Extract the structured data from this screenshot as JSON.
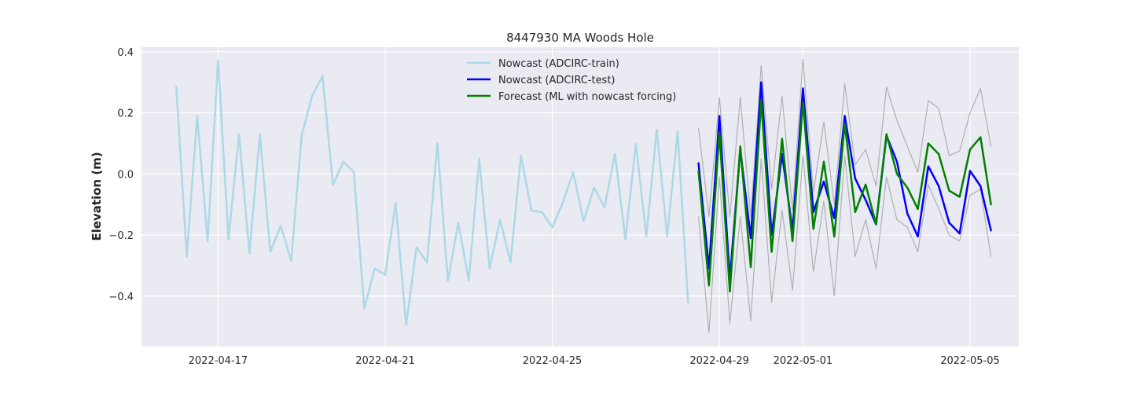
{
  "chart_data": {
    "type": "line",
    "title": "8447930 MA Woods Hole",
    "xlabel": "",
    "ylabel": "Elevation (m)",
    "ylim": [
      -0.565,
      0.415
    ],
    "xlim": [
      "2022-04-15T04:00",
      "2022-05-06T04:00"
    ],
    "x_ticks": [
      "2022-04-17",
      "2022-04-21",
      "2022-04-25",
      "2022-04-29",
      "2022-05-01",
      "2022-05-05"
    ],
    "y_ticks": [
      -0.4,
      -0.2,
      0.0,
      0.2,
      0.4
    ],
    "y_tick_labels": [
      "−0.4",
      "−0.2",
      "0.0",
      "0.2",
      "0.4"
    ],
    "grid": true,
    "legend_position": "top-center",
    "series": [
      {
        "name": "Nowcast (ADCIRC-train)",
        "color": "#add8e6",
        "start": "2022-04-16T00:00",
        "step_hours": 6,
        "values": [
          0.285,
          -0.27,
          0.19,
          -0.22,
          0.372,
          -0.215,
          0.13,
          -0.26,
          0.13,
          -0.255,
          -0.17,
          -0.285,
          0.125,
          0.255,
          0.32,
          -0.035,
          0.04,
          0.005,
          -0.44,
          -0.31,
          -0.33,
          -0.095,
          -0.495,
          -0.24,
          -0.29,
          0.1,
          -0.35,
          -0.16,
          -0.35,
          0.05,
          -0.31,
          -0.15,
          -0.29,
          0.06,
          -0.12,
          -0.125,
          -0.175,
          -0.095,
          0.005,
          -0.155,
          -0.045,
          -0.11,
          0.065,
          -0.215,
          0.1,
          -0.205,
          0.145,
          -0.205,
          0.14,
          -0.42
        ]
      },
      {
        "name": "Nowcast (ADCIRC-test)",
        "color": "#0000ff",
        "start": "2022-04-28T12:00",
        "step_hours": 6,
        "values": [
          0.035,
          -0.31,
          0.19,
          -0.345,
          0.08,
          -0.21,
          0.3,
          -0.2,
          0.065,
          -0.185,
          0.28,
          -0.125,
          -0.025,
          -0.145,
          0.19,
          -0.015,
          -0.085,
          -0.165,
          0.125,
          0.04,
          -0.13,
          -0.205,
          0.025,
          -0.04,
          -0.16,
          -0.195,
          0.01,
          -0.04,
          -0.185
        ]
      },
      {
        "name": "Forecast (ML with nowcast forcing)",
        "color": "#008000",
        "start": "2022-04-28T12:00",
        "step_hours": 6,
        "values": [
          0.01,
          -0.365,
          0.135,
          -0.385,
          0.09,
          -0.305,
          0.24,
          -0.255,
          0.115,
          -0.22,
          0.235,
          -0.18,
          0.04,
          -0.205,
          0.165,
          -0.125,
          -0.035,
          -0.165,
          0.13,
          0.0,
          -0.045,
          -0.115,
          0.1,
          0.065,
          -0.055,
          -0.075,
          0.08,
          0.12,
          -0.1
        ]
      },
      {
        "color": "#b0b0b0",
        "start": "2022-04-28T12:00",
        "step_hours": 6,
        "values": [
          0.15,
          -0.14,
          0.25,
          -0.14,
          0.25,
          -0.14,
          0.355,
          -0.05,
          0.255,
          -0.12,
          0.375,
          -0.06,
          0.17,
          -0.1,
          0.295,
          0.03,
          0.08,
          -0.04,
          0.285,
          0.175,
          0.09,
          0.005,
          0.24,
          0.215,
          0.06,
          0.075,
          0.2,
          0.28,
          0.09
        ]
      },
      {
        "color": "#b0b0b0",
        "start": "2022-04-28T12:00",
        "step_hours": 6,
        "values": [
          -0.14,
          -0.52,
          -0.01,
          -0.49,
          -0.14,
          -0.48,
          0.05,
          -0.42,
          -0.12,
          -0.38,
          0.06,
          -0.32,
          -0.09,
          -0.4,
          0.06,
          -0.27,
          -0.15,
          -0.31,
          -0.01,
          -0.15,
          -0.175,
          -0.255,
          -0.035,
          -0.115,
          -0.2,
          -0.22,
          -0.07,
          -0.05,
          -0.27
        ]
      }
    ]
  }
}
